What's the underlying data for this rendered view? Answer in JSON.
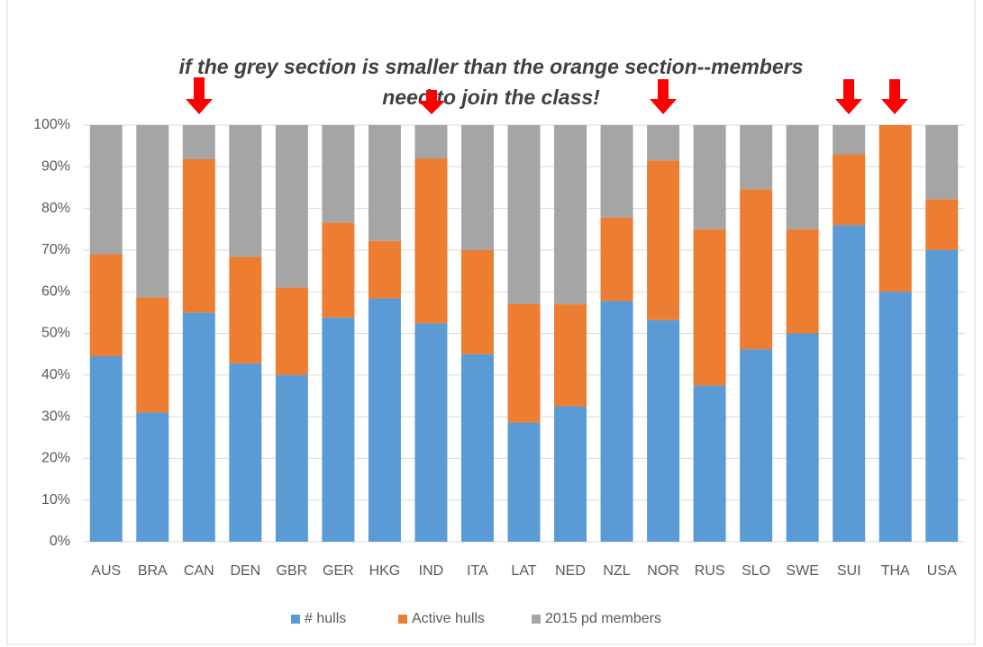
{
  "chart_data": {
    "type": "stacked_bar",
    "subtitle": [
      "if the grey section is smaller than the orange section--members",
      "need to join the class!"
    ],
    "categories": [
      "AUS",
      "BRA",
      "CAN",
      "DEN",
      "GBR",
      "GER",
      "HKG",
      "IND",
      "ITA",
      "LAT",
      "NED",
      "NZL",
      "NOR",
      "RUS",
      "SLO",
      "SWE",
      "SUI",
      "THA",
      "USA"
    ],
    "series": [
      {
        "name": "# hulls",
        "color": "#5b9bd5",
        "values": [
          44.5,
          31,
          55,
          42.8,
          40,
          53.8,
          58.4,
          52.4,
          45,
          28.6,
          32.5,
          57.8,
          53.2,
          37.5,
          46.2,
          50,
          76,
          60,
          70
        ]
      },
      {
        "name": "Active hulls",
        "color": "#ed7d31",
        "values": [
          24.5,
          27.7,
          36.8,
          25.6,
          21,
          22.8,
          13.8,
          39.6,
          25,
          28.5,
          24.5,
          20,
          38.3,
          37.5,
          38.4,
          25,
          17,
          40,
          12.2
        ]
      },
      {
        "name": "2015 pd members",
        "color": "#a5a5a5",
        "values": [
          31,
          41.3,
          8.2,
          31.6,
          39,
          23.4,
          27.8,
          8,
          30,
          42.9,
          43,
          22.2,
          8.5,
          25,
          15.4,
          25,
          7,
          0,
          17.8
        ]
      }
    ],
    "ylim": [
      0,
      100
    ],
    "yticks": [
      {
        "value": 0,
        "label": "0%"
      },
      {
        "value": 10,
        "label": "10%"
      },
      {
        "value": 20,
        "label": "20%"
      },
      {
        "value": 30,
        "label": "30%"
      },
      {
        "value": 40,
        "label": "40%"
      },
      {
        "value": 50,
        "label": "50%"
      },
      {
        "value": 60,
        "label": "60%"
      },
      {
        "value": 70,
        "label": "70%"
      },
      {
        "value": 80,
        "label": "80%"
      },
      {
        "value": 90,
        "label": "90%"
      },
      {
        "value": 100,
        "label": "100%"
      }
    ],
    "grid": true,
    "legend": "bottom"
  }
}
